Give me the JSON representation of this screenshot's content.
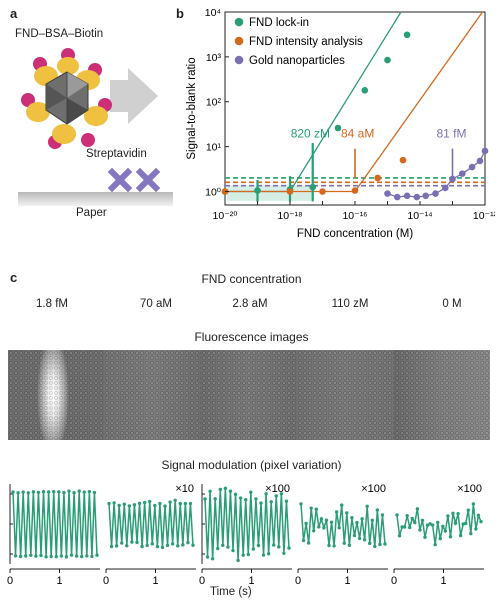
{
  "colors": {
    "fnd_lockin": "#2a9d75",
    "fnd_intensity": "#d2691e",
    "gold": "#7b6fb4",
    "signal_trace": "#2a9d75",
    "streptavidin": "#8476c0",
    "bsa": "#f0c040",
    "biotin": "#cc2f78"
  },
  "panel_a": {
    "letter": "a",
    "label_fnd": "FND–BSA–Biotin",
    "label_streptavidin": "Streptavidin",
    "label_paper": "Paper"
  },
  "panel_b": {
    "letter": "b",
    "annotations": [
      "820 zM",
      "84 aM",
      "81 fM"
    ]
  },
  "panel_c": {
    "letter": "c",
    "concentration_title": "FND concentration",
    "concentrations": [
      "1.8 fM",
      "70 aM",
      "2.8 aM",
      "110 zM",
      "0 M"
    ],
    "images_title": "Fluorescence images",
    "modulation_title": "Signal modulation (pixel variation)",
    "multipliers": [
      "",
      "×10",
      "×100",
      "×100",
      "×100"
    ],
    "time_ticks": [
      "0",
      "1"
    ],
    "time_label": "Time (s)"
  },
  "chart_data": {
    "type": "scatter",
    "xlabel": "FND concentration (M)",
    "ylabel": "Signal-to-blank ratio",
    "xscale": "log",
    "yscale": "log",
    "xlim": [
      1e-20,
      1e-12
    ],
    "ylim": [
      0.5,
      10000
    ],
    "x_ticks": [
      "10⁻²⁰",
      "10⁻¹⁸",
      "10⁻¹⁶",
      "10⁻¹⁴",
      "10⁻¹²"
    ],
    "y_ticks": [
      "10⁰",
      "10¹",
      "10²",
      "10³",
      "10⁴"
    ],
    "legend_position": "top-left",
    "series": [
      {
        "name": "FND lock-in",
        "x": [
          1e-20,
          1e-19,
          1e-18,
          5e-18,
          3e-17,
          2e-16,
          1e-15,
          4e-15
        ],
        "y": [
          1.0,
          1.05,
          1.1,
          1.25,
          26,
          180,
          850,
          3100
        ]
      },
      {
        "name": "FND intensity analysis",
        "x": [
          1e-20,
          1e-18,
          1e-17,
          1e-16,
          5e-16,
          3e-15
        ],
        "y": [
          1.0,
          1.0,
          1.0,
          1.05,
          2.0,
          5.0
        ]
      },
      {
        "name": "Gold nanoparticles",
        "x": [
          1e-15,
          2e-15,
          4e-15,
          8e-15,
          1.5e-14,
          3e-14,
          6e-14,
          1e-13,
          2e-13,
          4e-13,
          7e-13,
          1e-12
        ],
        "y": [
          0.9,
          0.75,
          0.8,
          0.75,
          0.8,
          0.9,
          1.2,
          1.9,
          2.5,
          3.5,
          4.8,
          8.0
        ]
      }
    ],
    "fit_lines": [
      {
        "series": "FND lock-in",
        "x": [
          1e-18,
          1.2e-14
        ],
        "y": [
          1.0,
          60000
        ]
      },
      {
        "series": "FND intensity analysis",
        "x": [
          1e-16,
          1e-12
        ],
        "y": [
          1.0,
          12000
        ]
      }
    ],
    "threshold_lines": [
      {
        "series": "FND lock-in",
        "y": 2.0
      },
      {
        "series": "FND intensity analysis",
        "y": 1.6
      },
      {
        "series": "Gold nanoparticles",
        "y": 1.35
      }
    ]
  }
}
